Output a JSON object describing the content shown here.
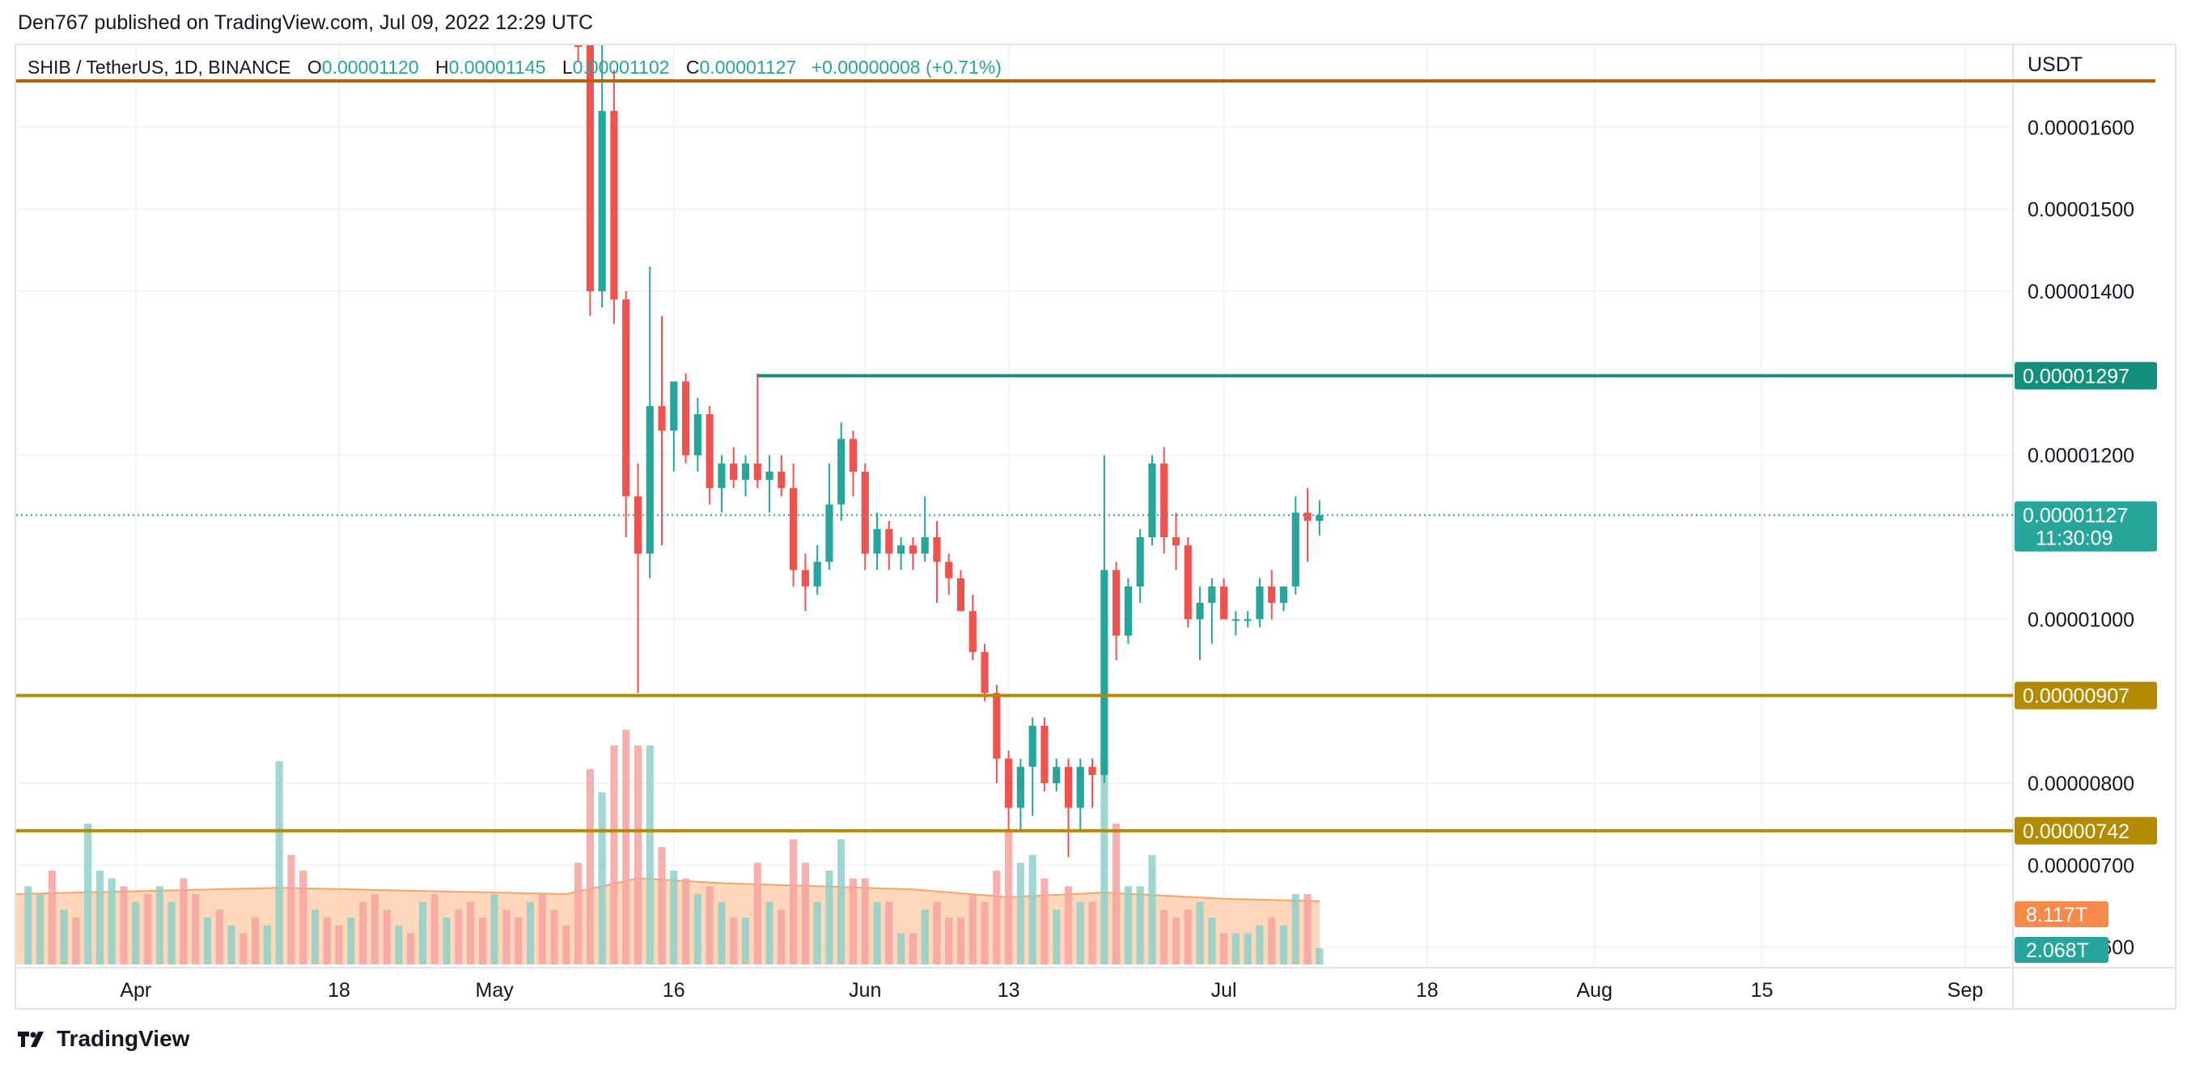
{
  "header": {
    "publisher": "Den767 published on TradingView.com, Jul 09, 2022 12:29 UTC"
  },
  "legend": {
    "symbol": "SHIB / TetherUS, 1D, BINANCE",
    "o_label": "O",
    "o_value": "0.00001120",
    "h_label": "H",
    "h_value": "0.00001145",
    "l_label": "L",
    "l_value": "0.00001102",
    "c_label": "C",
    "c_value": "0.00001127",
    "change": "+0.00000008 (+0.71%)"
  },
  "footer": {
    "brand": "TradingView",
    "logo_icon": "tradingview-logo-icon"
  },
  "colors": {
    "up": "#26a69a",
    "down": "#ef5350",
    "up_volume": "#8fd0c9",
    "down_volume": "#f5a3a1",
    "volume_ma": "#ffcba4",
    "volume_ma_line": "#f7a46b",
    "resistance": "#138f7c",
    "support": "#b38b00",
    "top_line": "#b36200",
    "grid": "#f0f3fa",
    "current_price": "#26a69a",
    "volume_tag": "#f7894a"
  },
  "chart_data": {
    "type": "candlestick",
    "title": "SHIB / TetherUS, 1D, BINANCE",
    "currency": "USDT",
    "ylim": [
      5.75e-06,
      1.7e-05
    ],
    "y_ticks": [
      "0.00001600",
      "0.00001500",
      "0.00001400",
      "0.00001200",
      "0.00001000",
      "0.00000800",
      "0.00000700",
      "0.00000600"
    ],
    "x_tick_labels": [
      {
        "label": "Apr",
        "date": "2022-04-01"
      },
      {
        "label": "18",
        "date": "2022-04-18"
      },
      {
        "label": "May",
        "date": "2022-05-01"
      },
      {
        "label": "16",
        "date": "2022-05-16"
      },
      {
        "label": "Jun",
        "date": "2022-06-01"
      },
      {
        "label": "13",
        "date": "2022-06-13"
      },
      {
        "label": "Jul",
        "date": "2022-07-01"
      },
      {
        "label": "18",
        "date": "2022-07-18"
      },
      {
        "label": "Aug",
        "date": "2022-08-01"
      },
      {
        "label": "15",
        "date": "2022-08-15"
      },
      {
        "label": "Sep",
        "date": "2022-09-01"
      }
    ],
    "x_range": [
      "2022-03-22",
      "2022-09-05"
    ],
    "horizontal_levels": [
      {
        "name": "top",
        "value": 1.69e-05,
        "label": ""
      },
      {
        "name": "resistance",
        "value": 1.297e-05,
        "label": "0.00001297",
        "start_date": "2022-05-23"
      },
      {
        "name": "support-1",
        "value": 9.07e-06,
        "label": "0.00000907"
      },
      {
        "name": "support-2",
        "value": 7.42e-06,
        "label": "0.00000742"
      }
    ],
    "current_price": {
      "value": 1.127e-05,
      "label": "0.00001127",
      "countdown": "11:30:09"
    },
    "volume_tags": {
      "ma": "8.117T",
      "last": "2.068T"
    },
    "volume_max_T": 30,
    "candles": [
      {
        "d": "2022-05-08",
        "o": 1.8e-05,
        "h": 1.85e-05,
        "l": 1.68e-05,
        "c": 1.7e-05,
        "v": 13
      },
      {
        "d": "2022-05-09",
        "o": 1.7e-05,
        "h": 1.75e-05,
        "l": 1.37e-05,
        "c": 1.4e-05,
        "v": 25
      },
      {
        "d": "2022-05-10",
        "o": 1.4e-05,
        "h": 1.72e-05,
        "l": 1.38e-05,
        "c": 1.62e-05,
        "v": 22
      },
      {
        "d": "2022-05-11",
        "o": 1.62e-05,
        "h": 1.67e-05,
        "l": 1.36e-05,
        "c": 1.39e-05,
        "v": 28
      },
      {
        "d": "2022-05-12",
        "o": 1.39e-05,
        "h": 1.4e-05,
        "l": 1.1e-05,
        "c": 1.15e-05,
        "v": 30
      },
      {
        "d": "2022-05-13",
        "o": 1.15e-05,
        "h": 1.19e-05,
        "l": 9.1e-06,
        "c": 1.08e-05,
        "v": 28
      },
      {
        "d": "2022-05-14",
        "o": 1.08e-05,
        "h": 1.43e-05,
        "l": 1.05e-05,
        "c": 1.26e-05,
        "v": 28
      },
      {
        "d": "2022-05-15",
        "o": 1.26e-05,
        "h": 1.37e-05,
        "l": 1.09e-05,
        "c": 1.23e-05,
        "v": 15
      },
      {
        "d": "2022-05-16",
        "o": 1.23e-05,
        "h": 1.29e-05,
        "l": 1.18e-05,
        "c": 1.29e-05,
        "v": 12
      },
      {
        "d": "2022-05-17",
        "o": 1.29e-05,
        "h": 1.3e-05,
        "l": 1.19e-05,
        "c": 1.2e-05,
        "v": 11
      },
      {
        "d": "2022-05-18",
        "o": 1.2e-05,
        "h": 1.27e-05,
        "l": 1.18e-05,
        "c": 1.25e-05,
        "v": 9
      },
      {
        "d": "2022-05-19",
        "o": 1.25e-05,
        "h": 1.26e-05,
        "l": 1.14e-05,
        "c": 1.16e-05,
        "v": 10
      },
      {
        "d": "2022-05-20",
        "o": 1.16e-05,
        "h": 1.2e-05,
        "l": 1.13e-05,
        "c": 1.19e-05,
        "v": 8
      },
      {
        "d": "2022-05-21",
        "o": 1.19e-05,
        "h": 1.21e-05,
        "l": 1.16e-05,
        "c": 1.17e-05,
        "v": 6
      },
      {
        "d": "2022-05-22",
        "o": 1.17e-05,
        "h": 1.2e-05,
        "l": 1.15e-05,
        "c": 1.19e-05,
        "v": 6
      },
      {
        "d": "2022-05-23",
        "o": 1.19e-05,
        "h": 1.3e-05,
        "l": 1.16e-05,
        "c": 1.17e-05,
        "v": 13
      },
      {
        "d": "2022-05-24",
        "o": 1.17e-05,
        "h": 1.2e-05,
        "l": 1.13e-05,
        "c": 1.18e-05,
        "v": 8
      },
      {
        "d": "2022-05-25",
        "o": 1.18e-05,
        "h": 1.2e-05,
        "l": 1.15e-05,
        "c": 1.16e-05,
        "v": 7
      },
      {
        "d": "2022-05-26",
        "o": 1.16e-05,
        "h": 1.19e-05,
        "l": 1.04e-05,
        "c": 1.06e-05,
        "v": 16
      },
      {
        "d": "2022-05-27",
        "o": 1.06e-05,
        "h": 1.08e-05,
        "l": 1.01e-05,
        "c": 1.04e-05,
        "v": 13
      },
      {
        "d": "2022-05-28",
        "o": 1.04e-05,
        "h": 1.09e-05,
        "l": 1.03e-05,
        "c": 1.07e-05,
        "v": 8
      },
      {
        "d": "2022-05-29",
        "o": 1.07e-05,
        "h": 1.19e-05,
        "l": 1.06e-05,
        "c": 1.14e-05,
        "v": 12
      },
      {
        "d": "2022-05-30",
        "o": 1.14e-05,
        "h": 1.24e-05,
        "l": 1.12e-05,
        "c": 1.22e-05,
        "v": 16
      },
      {
        "d": "2022-05-31",
        "o": 1.22e-05,
        "h": 1.23e-05,
        "l": 1.15e-05,
        "c": 1.18e-05,
        "v": 11
      },
      {
        "d": "2022-06-01",
        "o": 1.18e-05,
        "h": 1.19e-05,
        "l": 1.06e-05,
        "c": 1.08e-05,
        "v": 11
      },
      {
        "d": "2022-06-02",
        "o": 1.08e-05,
        "h": 1.13e-05,
        "l": 1.06e-05,
        "c": 1.11e-05,
        "v": 8
      },
      {
        "d": "2022-06-03",
        "o": 1.11e-05,
        "h": 1.12e-05,
        "l": 1.06e-05,
        "c": 1.08e-05,
        "v": 8
      },
      {
        "d": "2022-06-04",
        "o": 1.08e-05,
        "h": 1.1e-05,
        "l": 1.06e-05,
        "c": 1.09e-05,
        "v": 4
      },
      {
        "d": "2022-06-05",
        "o": 1.09e-05,
        "h": 1.1e-05,
        "l": 1.06e-05,
        "c": 1.08e-05,
        "v": 4
      },
      {
        "d": "2022-06-06",
        "o": 1.08e-05,
        "h": 1.15e-05,
        "l": 1.07e-05,
        "c": 1.1e-05,
        "v": 7
      },
      {
        "d": "2022-06-07",
        "o": 1.1e-05,
        "h": 1.12e-05,
        "l": 1.02e-05,
        "c": 1.07e-05,
        "v": 8
      },
      {
        "d": "2022-06-08",
        "o": 1.07e-05,
        "h": 1.08e-05,
        "l": 1.03e-05,
        "c": 1.05e-05,
        "v": 6
      },
      {
        "d": "2022-06-09",
        "o": 1.05e-05,
        "h": 1.06e-05,
        "l": 1.01e-05,
        "c": 1.01e-05,
        "v": 6
      },
      {
        "d": "2022-06-10",
        "o": 1.01e-05,
        "h": 1.03e-05,
        "l": 9.5e-06,
        "c": 9.6e-06,
        "v": 9
      },
      {
        "d": "2022-06-11",
        "o": 9.6e-06,
        "h": 9.7e-06,
        "l": 9e-06,
        "c": 9.1e-06,
        "v": 8
      },
      {
        "d": "2022-06-12",
        "o": 9.1e-06,
        "h": 9.2e-06,
        "l": 8e-06,
        "c": 8.3e-06,
        "v": 12
      },
      {
        "d": "2022-06-13",
        "o": 8.3e-06,
        "h": 8.4e-06,
        "l": 7.4e-06,
        "c": 7.7e-06,
        "v": 17
      },
      {
        "d": "2022-06-14",
        "o": 7.7e-06,
        "h": 8.3e-06,
        "l": 7.4e-06,
        "c": 8.2e-06,
        "v": 13
      },
      {
        "d": "2022-06-15",
        "o": 8.2e-06,
        "h": 8.8e-06,
        "l": 7.6e-06,
        "c": 8.7e-06,
        "v": 14
      },
      {
        "d": "2022-06-16",
        "o": 8.7e-06,
        "h": 8.8e-06,
        "l": 7.9e-06,
        "c": 8e-06,
        "v": 11
      },
      {
        "d": "2022-06-17",
        "o": 8e-06,
        "h": 8.3e-06,
        "l": 7.9e-06,
        "c": 8.2e-06,
        "v": 7
      },
      {
        "d": "2022-06-18",
        "o": 8.2e-06,
        "h": 8.3e-06,
        "l": 7.1e-06,
        "c": 7.7e-06,
        "v": 10
      },
      {
        "d": "2022-06-19",
        "o": 7.7e-06,
        "h": 8.3e-06,
        "l": 7.4e-06,
        "c": 8.2e-06,
        "v": 8
      },
      {
        "d": "2022-06-20",
        "o": 8.2e-06,
        "h": 8.3e-06,
        "l": 7.7e-06,
        "c": 8.1e-06,
        "v": 8
      },
      {
        "d": "2022-06-21",
        "o": 8.1e-06,
        "h": 1.2e-05,
        "l": 8e-06,
        "c": 1.06e-05,
        "v": 27
      },
      {
        "d": "2022-06-22",
        "o": 1.06e-05,
        "h": 1.07e-05,
        "l": 9.5e-06,
        "c": 9.8e-06,
        "v": 18
      },
      {
        "d": "2022-06-23",
        "o": 9.8e-06,
        "h": 1.05e-05,
        "l": 9.7e-06,
        "c": 1.04e-05,
        "v": 10
      },
      {
        "d": "2022-06-24",
        "o": 1.04e-05,
        "h": 1.11e-05,
        "l": 1.02e-05,
        "c": 1.1e-05,
        "v": 10
      },
      {
        "d": "2022-06-25",
        "o": 1.1e-05,
        "h": 1.2e-05,
        "l": 1.09e-05,
        "c": 1.19e-05,
        "v": 14
      },
      {
        "d": "2022-06-26",
        "o": 1.19e-05,
        "h": 1.21e-05,
        "l": 1.08e-05,
        "c": 1.1e-05,
        "v": 7
      },
      {
        "d": "2022-06-27",
        "o": 1.1e-05,
        "h": 1.13e-05,
        "l": 1.06e-05,
        "c": 1.09e-05,
        "v": 6
      },
      {
        "d": "2022-06-28",
        "o": 1.09e-05,
        "h": 1.1e-05,
        "l": 9.9e-06,
        "c": 1e-05,
        "v": 7
      },
      {
        "d": "2022-06-29",
        "o": 1e-05,
        "h": 1.04e-05,
        "l": 9.5e-06,
        "c": 1.02e-05,
        "v": 8
      },
      {
        "d": "2022-06-30",
        "o": 1.02e-05,
        "h": 1.05e-05,
        "l": 9.7e-06,
        "c": 1.04e-05,
        "v": 6
      },
      {
        "d": "2022-07-01",
        "o": 1.04e-05,
        "h": 1.05e-05,
        "l": 1e-05,
        "c": 1e-05,
        "v": 4
      },
      {
        "d": "2022-07-02",
        "o": 1e-05,
        "h": 1.01e-05,
        "l": 9.8e-06,
        "c": 1e-05,
        "v": 4
      },
      {
        "d": "2022-07-03",
        "o": 1e-05,
        "h": 1.01e-05,
        "l": 9.9e-06,
        "c": 1e-05,
        "v": 4
      },
      {
        "d": "2022-07-04",
        "o": 1e-05,
        "h": 1.05e-05,
        "l": 9.9e-06,
        "c": 1.04e-05,
        "v": 5
      },
      {
        "d": "2022-07-05",
        "o": 1.04e-05,
        "h": 1.06e-05,
        "l": 1e-05,
        "c": 1.02e-05,
        "v": 6
      },
      {
        "d": "2022-07-06",
        "o": 1.02e-05,
        "h": 1.04e-05,
        "l": 1.01e-05,
        "c": 1.04e-05,
        "v": 5
      },
      {
        "d": "2022-07-07",
        "o": 1.04e-05,
        "h": 1.15e-05,
        "l": 1.03e-05,
        "c": 1.13e-05,
        "v": 9
      },
      {
        "d": "2022-07-08",
        "o": 1.13e-05,
        "h": 1.16e-05,
        "l": 1.07e-05,
        "c": 1.12e-05,
        "v": 9
      },
      {
        "d": "2022-07-09",
        "o": 1.12e-05,
        "h": 1.145e-05,
        "l": 1.102e-05,
        "c": 1.127e-05,
        "v": 2.068
      }
    ],
    "pre_crash_volume": [
      {
        "d": "2022-03-23",
        "v": 10,
        "up": true
      },
      {
        "d": "2022-03-24",
        "v": 9,
        "up": true
      },
      {
        "d": "2022-03-25",
        "v": 12,
        "up": false
      },
      {
        "d": "2022-03-26",
        "v": 7,
        "up": true
      },
      {
        "d": "2022-03-27",
        "v": 6,
        "up": false
      },
      {
        "d": "2022-03-28",
        "v": 18,
        "up": true
      },
      {
        "d": "2022-03-29",
        "v": 12,
        "up": true
      },
      {
        "d": "2022-03-30",
        "v": 11,
        "up": true
      },
      {
        "d": "2022-03-31",
        "v": 10,
        "up": false
      },
      {
        "d": "2022-04-01",
        "v": 8,
        "up": true
      },
      {
        "d": "2022-04-02",
        "v": 9,
        "up": false
      },
      {
        "d": "2022-04-03",
        "v": 10,
        "up": true
      },
      {
        "d": "2022-04-04",
        "v": 8,
        "up": true
      },
      {
        "d": "2022-04-05",
        "v": 11,
        "up": false
      },
      {
        "d": "2022-04-06",
        "v": 9,
        "up": false
      },
      {
        "d": "2022-04-07",
        "v": 6,
        "up": true
      },
      {
        "d": "2022-04-08",
        "v": 7,
        "up": false
      },
      {
        "d": "2022-04-09",
        "v": 5,
        "up": true
      },
      {
        "d": "2022-04-10",
        "v": 4,
        "up": false
      },
      {
        "d": "2022-04-11",
        "v": 6,
        "up": false
      },
      {
        "d": "2022-04-12",
        "v": 5,
        "up": true
      },
      {
        "d": "2022-04-13",
        "v": 26,
        "up": true
      },
      {
        "d": "2022-04-14",
        "v": 14,
        "up": false
      },
      {
        "d": "2022-04-15",
        "v": 12,
        "up": false
      },
      {
        "d": "2022-04-16",
        "v": 7,
        "up": true
      },
      {
        "d": "2022-04-17",
        "v": 6,
        "up": false
      },
      {
        "d": "2022-04-18",
        "v": 5,
        "up": false
      },
      {
        "d": "2022-04-19",
        "v": 6,
        "up": true
      },
      {
        "d": "2022-04-20",
        "v": 8,
        "up": false
      },
      {
        "d": "2022-04-21",
        "v": 9,
        "up": false
      },
      {
        "d": "2022-04-22",
        "v": 7,
        "up": false
      },
      {
        "d": "2022-04-23",
        "v": 5,
        "up": true
      },
      {
        "d": "2022-04-24",
        "v": 4,
        "up": false
      },
      {
        "d": "2022-04-25",
        "v": 8,
        "up": true
      },
      {
        "d": "2022-04-26",
        "v": 9,
        "up": false
      },
      {
        "d": "2022-04-27",
        "v": 6,
        "up": true
      },
      {
        "d": "2022-04-28",
        "v": 7,
        "up": false
      },
      {
        "d": "2022-04-29",
        "v": 8,
        "up": false
      },
      {
        "d": "2022-04-30",
        "v": 6,
        "up": false
      },
      {
        "d": "2022-05-01",
        "v": 9,
        "up": true
      },
      {
        "d": "2022-05-02",
        "v": 7,
        "up": false
      },
      {
        "d": "2022-05-03",
        "v": 6,
        "up": false
      },
      {
        "d": "2022-05-04",
        "v": 8,
        "up": true
      },
      {
        "d": "2022-05-05",
        "v": 9,
        "up": false
      },
      {
        "d": "2022-05-06",
        "v": 7,
        "up": false
      },
      {
        "d": "2022-05-07",
        "v": 5,
        "up": false
      }
    ],
    "volume_ma_line": [
      {
        "d": "2022-03-22",
        "v": 9
      },
      {
        "d": "2022-04-13",
        "v": 9.8
      },
      {
        "d": "2022-05-07",
        "v": 9
      },
      {
        "d": "2022-05-13",
        "v": 11
      },
      {
        "d": "2022-05-20",
        "v": 10.4
      },
      {
        "d": "2022-06-05",
        "v": 9.6
      },
      {
        "d": "2022-06-13",
        "v": 8.6
      },
      {
        "d": "2022-06-21",
        "v": 9.2
      },
      {
        "d": "2022-07-01",
        "v": 8.4
      },
      {
        "d": "2022-07-09",
        "v": 8.1
      }
    ]
  }
}
